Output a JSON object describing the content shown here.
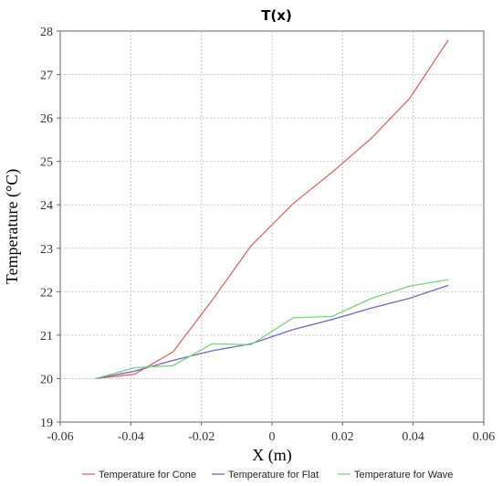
{
  "chart_data": {
    "type": "line",
    "title": "T(x)",
    "xlabel": "X (m)",
    "ylabel": "Temperature (°C)",
    "xlim": [
      -0.06,
      0.06
    ],
    "ylim": [
      19,
      28
    ],
    "xticks": [
      -0.06,
      -0.04,
      -0.02,
      0,
      0.02,
      0.04,
      0.06
    ],
    "xtick_labels": [
      "-0.06",
      "-0.04",
      "-0.02",
      "0",
      "0.02",
      "0.04",
      "0.06"
    ],
    "yticks": [
      19,
      20,
      21,
      22,
      23,
      24,
      25,
      26,
      27,
      28
    ],
    "ytick_labels": [
      "19",
      "20",
      "21",
      "22",
      "23",
      "24",
      "25",
      "26",
      "27",
      "28"
    ],
    "grid": true,
    "legend_position": "bottom",
    "series": [
      {
        "name": "Temperature for Cone",
        "color": "#e06666",
        "x": [
          -0.05,
          -0.039,
          -0.028,
          -0.017,
          -0.006,
          0.006,
          0.017,
          0.028,
          0.039,
          0.05
        ],
        "y": [
          20.0,
          20.1,
          20.62,
          21.8,
          23.05,
          24.03,
          24.75,
          25.52,
          26.45,
          27.8
        ]
      },
      {
        "name": "Temperature for Flat",
        "color": "#6b6bb5",
        "x": [
          -0.05,
          -0.039,
          -0.028,
          -0.017,
          -0.006,
          0.006,
          0.017,
          0.028,
          0.039,
          0.05
        ],
        "y": [
          20.0,
          20.17,
          20.42,
          20.64,
          20.8,
          21.13,
          21.36,
          21.62,
          21.85,
          22.15
        ]
      },
      {
        "name": "Temperature for Wave",
        "color": "#7fcf7f",
        "x": [
          -0.05,
          -0.039,
          -0.028,
          -0.017,
          -0.006,
          0.006,
          0.017,
          0.028,
          0.039,
          0.05
        ],
        "y": [
          20.0,
          20.25,
          20.3,
          20.8,
          20.78,
          21.4,
          21.43,
          21.84,
          22.13,
          22.28
        ]
      }
    ]
  }
}
